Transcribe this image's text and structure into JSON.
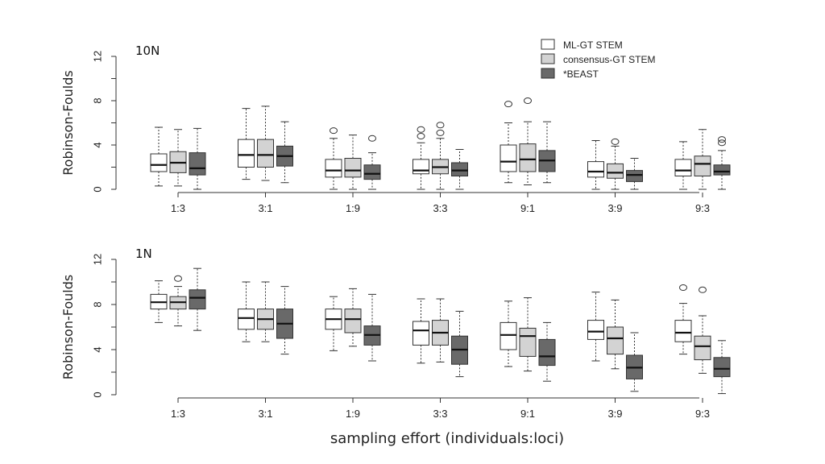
{
  "chart_data": {
    "type": "boxplot",
    "xlabel": "sampling effort (individuals:loci)",
    "ylabel": "Robinson-Foulds",
    "categories": [
      "1:3",
      "3:1",
      "1:9",
      "3:3",
      "9:1",
      "3:9",
      "9:3"
    ],
    "series_names": [
      "ML-GT STEM",
      "consensus-GT STEM",
      "*BEAST"
    ],
    "series_colors": [
      "#ffffff",
      "#d3d3d3",
      "#696969"
    ],
    "ylim": [
      0,
      12
    ],
    "yticks": [
      "0",
      "4",
      "8",
      "12"
    ],
    "legend_position": "top-right",
    "panels": [
      {
        "label": "10N",
        "series": [
          {
            "name": "ML-GT STEM",
            "boxes": [
              {
                "min": 0.3,
                "q1": 1.6,
                "median": 2.2,
                "q3": 3.2,
                "max": 5.6,
                "outliers": []
              },
              {
                "min": 0.9,
                "q1": 2.0,
                "median": 3.1,
                "q3": 4.5,
                "max": 7.3,
                "outliers": []
              },
              {
                "min": 0.0,
                "q1": 1.1,
                "median": 1.7,
                "q3": 2.7,
                "max": 4.6,
                "outliers": [
                  5.3
                ]
              },
              {
                "min": 0.0,
                "q1": 1.4,
                "median": 1.7,
                "q3": 2.7,
                "max": 4.2,
                "outliers": [
                  4.8,
                  5.4
                ]
              },
              {
                "min": 0.6,
                "q1": 1.6,
                "median": 2.5,
                "q3": 4.0,
                "max": 6.0,
                "outliers": [
                  7.7
                ]
              },
              {
                "min": 0.0,
                "q1": 1.1,
                "median": 1.6,
                "q3": 2.5,
                "max": 4.4,
                "outliers": []
              },
              {
                "min": 0.0,
                "q1": 1.2,
                "median": 1.7,
                "q3": 2.7,
                "max": 4.3,
                "outliers": []
              }
            ]
          },
          {
            "name": "consensus-GT STEM",
            "boxes": [
              {
                "min": 0.3,
                "q1": 1.5,
                "median": 2.4,
                "q3": 3.4,
                "max": 5.4,
                "outliers": []
              },
              {
                "min": 0.8,
                "q1": 2.0,
                "median": 3.1,
                "q3": 4.5,
                "max": 7.5,
                "outliers": []
              },
              {
                "min": 0.0,
                "q1": 1.1,
                "median": 1.7,
                "q3": 2.8,
                "max": 4.9,
                "outliers": []
              },
              {
                "min": 0.0,
                "q1": 1.4,
                "median": 2.0,
                "q3": 2.7,
                "max": 4.6,
                "outliers": [
                  5.1,
                  5.8
                ]
              },
              {
                "min": 0.4,
                "q1": 1.6,
                "median": 2.7,
                "q3": 4.1,
                "max": 6.1,
                "outliers": [
                  8.0
                ]
              },
              {
                "min": 0.0,
                "q1": 1.0,
                "median": 1.5,
                "q3": 2.3,
                "max": 3.9,
                "outliers": [
                  4.3
                ]
              },
              {
                "min": 0.0,
                "q1": 1.2,
                "median": 2.3,
                "q3": 3.0,
                "max": 5.4,
                "outliers": []
              }
            ]
          },
          {
            "name": "*BEAST",
            "boxes": [
              {
                "min": 0.0,
                "q1": 1.3,
                "median": 1.9,
                "q3": 3.3,
                "max": 5.5,
                "outliers": []
              },
              {
                "min": 0.6,
                "q1": 2.1,
                "median": 3.0,
                "q3": 3.9,
                "max": 6.1,
                "outliers": []
              },
              {
                "min": 0.0,
                "q1": 0.9,
                "median": 1.4,
                "q3": 2.2,
                "max": 3.3,
                "outliers": [
                  4.6
                ]
              },
              {
                "min": 0.0,
                "q1": 1.2,
                "median": 1.7,
                "q3": 2.4,
                "max": 3.6,
                "outliers": []
              },
              {
                "min": 0.6,
                "q1": 1.6,
                "median": 2.6,
                "q3": 3.5,
                "max": 6.1,
                "outliers": []
              },
              {
                "min": 0.0,
                "q1": 0.7,
                "median": 1.3,
                "q3": 1.7,
                "max": 2.8,
                "outliers": []
              },
              {
                "min": 0.0,
                "q1": 1.3,
                "median": 1.6,
                "q3": 2.2,
                "max": 3.5,
                "outliers": [
                  4.2,
                  4.5
                ]
              }
            ]
          }
        ]
      },
      {
        "label": "1N",
        "series": [
          {
            "name": "ML-GT STEM",
            "boxes": [
              {
                "min": 6.4,
                "q1": 7.6,
                "median": 8.2,
                "q3": 8.9,
                "max": 10.1,
                "outliers": []
              },
              {
                "min": 4.7,
                "q1": 5.8,
                "median": 6.8,
                "q3": 7.6,
                "max": 10.0,
                "outliers": []
              },
              {
                "min": 3.9,
                "q1": 5.8,
                "median": 6.7,
                "q3": 7.6,
                "max": 8.7,
                "outliers": []
              },
              {
                "min": 2.8,
                "q1": 4.4,
                "median": 5.7,
                "q3": 6.5,
                "max": 8.5,
                "outliers": []
              },
              {
                "min": 2.5,
                "q1": 4.0,
                "median": 5.3,
                "q3": 6.4,
                "max": 8.3,
                "outliers": []
              },
              {
                "min": 3.0,
                "q1": 4.9,
                "median": 5.6,
                "q3": 6.6,
                "max": 9.1,
                "outliers": []
              },
              {
                "min": 3.6,
                "q1": 4.7,
                "median": 5.5,
                "q3": 6.6,
                "max": 8.1,
                "outliers": [
                  9.5
                ]
              }
            ]
          },
          {
            "name": "consensus-GT STEM",
            "boxes": [
              {
                "min": 6.1,
                "q1": 7.6,
                "median": 8.2,
                "q3": 8.7,
                "max": 9.6,
                "outliers": [
                  10.3
                ]
              },
              {
                "min": 4.7,
                "q1": 5.8,
                "median": 6.7,
                "q3": 7.6,
                "max": 10.0,
                "outliers": []
              },
              {
                "min": 4.3,
                "q1": 5.5,
                "median": 6.7,
                "q3": 7.6,
                "max": 9.4,
                "outliers": []
              },
              {
                "min": 2.9,
                "q1": 4.4,
                "median": 5.5,
                "q3": 6.6,
                "max": 8.5,
                "outliers": []
              },
              {
                "min": 2.1,
                "q1": 3.4,
                "median": 5.2,
                "q3": 5.9,
                "max": 8.6,
                "outliers": []
              },
              {
                "min": 2.3,
                "q1": 3.6,
                "median": 5.0,
                "q3": 6.0,
                "max": 8.4,
                "outliers": []
              },
              {
                "min": 1.9,
                "q1": 3.1,
                "median": 4.3,
                "q3": 5.2,
                "max": 7.0,
                "outliers": [
                  9.3
                ]
              }
            ]
          },
          {
            "name": "*BEAST",
            "boxes": [
              {
                "min": 5.7,
                "q1": 7.6,
                "median": 8.6,
                "q3": 9.3,
                "max": 11.2,
                "outliers": []
              },
              {
                "min": 3.6,
                "q1": 5.0,
                "median": 6.3,
                "q3": 7.6,
                "max": 9.6,
                "outliers": []
              },
              {
                "min": 3.0,
                "q1": 4.4,
                "median": 5.3,
                "q3": 6.1,
                "max": 8.9,
                "outliers": []
              },
              {
                "min": 1.6,
                "q1": 2.7,
                "median": 4.0,
                "q3": 5.2,
                "max": 7.4,
                "outliers": []
              },
              {
                "min": 1.2,
                "q1": 2.6,
                "median": 3.4,
                "q3": 4.9,
                "max": 6.4,
                "outliers": []
              },
              {
                "min": 0.3,
                "q1": 1.4,
                "median": 2.4,
                "q3": 3.5,
                "max": 5.5,
                "outliers": []
              },
              {
                "min": 0.1,
                "q1": 1.6,
                "median": 2.3,
                "q3": 3.3,
                "max": 4.8,
                "outliers": []
              }
            ]
          }
        ]
      }
    ]
  }
}
